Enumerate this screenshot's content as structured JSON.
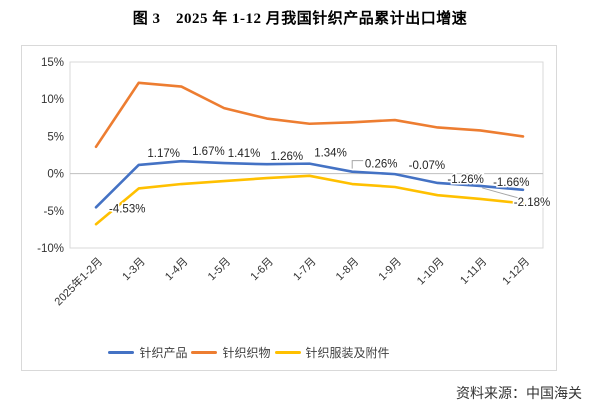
{
  "page": {
    "title": "图 3　2025 年 1-12 月我国针织产品累计出口增速",
    "source": "资料来源：中国海关"
  },
  "chart_data": {
    "type": "line",
    "title": "图 3　2025 年 1-12 月我国针织产品累计出口增速",
    "categories": [
      "2025年1-2月",
      "1-3月",
      "1-4月",
      "1-5月",
      "1-6月",
      "1-7月",
      "1-8月",
      "1-9月",
      "1-10月",
      "1-11月",
      "1-12月"
    ],
    "series": [
      {
        "name": "针织产品",
        "color": "#4472C4",
        "values": [
          -4.53,
          1.17,
          1.67,
          1.41,
          1.26,
          1.34,
          0.26,
          -0.07,
          -1.26,
          -1.66,
          -2.18
        ],
        "labels": [
          "-4.53%",
          "1.17%",
          "1.67%",
          "1.41%",
          "1.26%",
          "1.34%",
          "0.26%",
          "-0.07%",
          "-1.26%",
          "-1.66%",
          "-2.18%"
        ]
      },
      {
        "name": "针织织物",
        "color": "#ED7D31",
        "values": [
          3.6,
          12.2,
          11.7,
          8.8,
          7.4,
          6.7,
          6.9,
          7.2,
          6.2,
          5.8,
          5.0
        ],
        "labels": null
      },
      {
        "name": "针织服装及附件",
        "color": "#FFC000",
        "values": [
          -6.8,
          -2.0,
          -1.4,
          -1.0,
          -0.6,
          -0.3,
          -1.4,
          -1.8,
          -2.9,
          -3.4,
          -4.0
        ],
        "labels": null
      }
    ],
    "ylim": [
      -10,
      15
    ],
    "yticks": [
      15,
      10,
      5,
      0,
      -5,
      -10
    ],
    "ytick_suffix": "%",
    "grid": "zero-line-only",
    "legend_position": "bottom",
    "axis_color": "#bfbfbf",
    "border_color": "#d9d9d9",
    "label_color": "#262626",
    "tick_label_color": "#333333"
  }
}
